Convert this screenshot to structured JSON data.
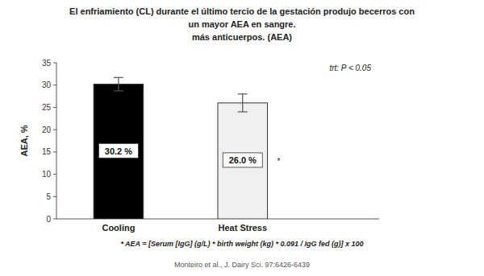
{
  "chart_data": {
    "type": "bar",
    "title": [
      "El enfriamiento (CL)  durante el último tercio de la gestación produjo becerros con",
      "un mayor AEA en sangre."
    ],
    "subtitle": "más anticuerpos. (AEA)",
    "categories": [
      "Cooling",
      "Heat Stress"
    ],
    "values": [
      30.2,
      26.0
    ],
    "errors": [
      1.5,
      2.0
    ],
    "colors": [
      "#000000",
      "#f0f0f0"
    ],
    "ylabel": "AEA, %",
    "ylim": [
      0,
      35
    ],
    "yticks": [
      0,
      5,
      10,
      15,
      20,
      25,
      30,
      35
    ],
    "grid": false,
    "data_labels": true,
    "value_labels": [
      "30.2 %",
      "26.0 %"
    ],
    "annotations": [
      "trt: P < 0.05",
      "*",
      "* AEA = [Serum [IgG] (g/L) * birth weight (kg) * 0.091 / IgG fed (g)] x 100",
      "Monteiro et al., J. Dairy Sci. 97:6426-6439"
    ]
  }
}
